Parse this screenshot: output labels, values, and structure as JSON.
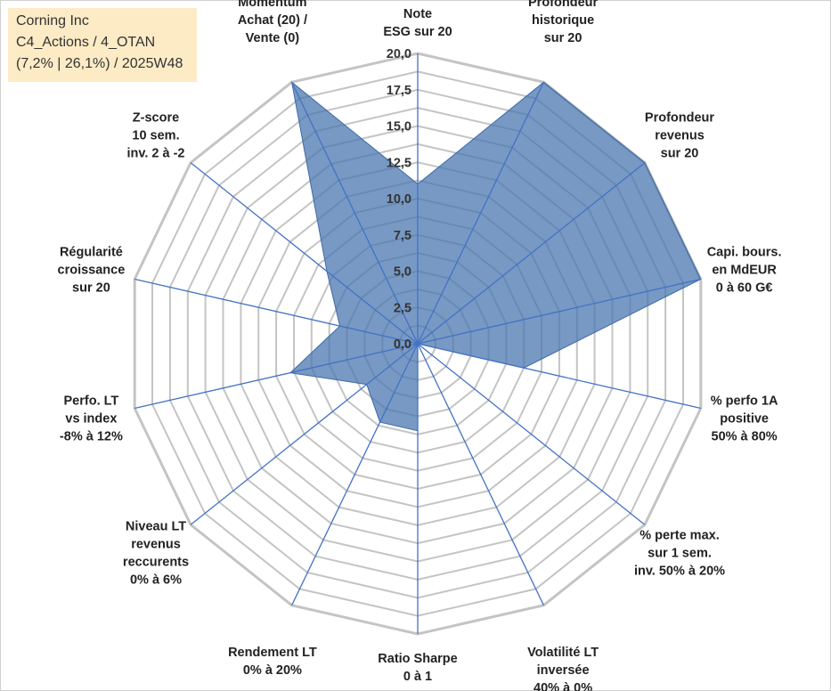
{
  "info": {
    "company": "Corning Inc",
    "category": "C4_Actions / 4_OTAN",
    "stats": "(7,2% | 26,1%) / 2025W48"
  },
  "chart_data": {
    "type": "radar",
    "title": "",
    "r_range": [
      0,
      20
    ],
    "r_ticks": [
      "0,0",
      "2,5",
      "5,0",
      "7,5",
      "10,0",
      "12,5",
      "15,0",
      "17,5",
      "20,0"
    ],
    "axes": [
      {
        "label": [
          "Note",
          "ESG sur 20"
        ]
      },
      {
        "label": [
          "Profondeur",
          "historique",
          "sur 20"
        ]
      },
      {
        "label": [
          "Profondeur",
          "revenus",
          "sur 20"
        ]
      },
      {
        "label": [
          "Capi. bours.",
          "en MdEUR",
          "0 à 60 G€"
        ]
      },
      {
        "label": [
          "% perfo 1A",
          "positive",
          "50% à 80%"
        ]
      },
      {
        "label": [
          "% perte max.",
          "sur 1 sem.",
          "inv. 50% à 20%"
        ]
      },
      {
        "label": [
          "Volatilité LT",
          "inversée",
          "40% à 0%"
        ]
      },
      {
        "label": [
          "Ratio Sharpe",
          "0 à 1"
        ]
      },
      {
        "label": [
          "Rendement LT",
          "0% à 20%"
        ]
      },
      {
        "label": [
          "Niveau LT",
          "revenus",
          "reccurents",
          "0% à 6%"
        ]
      },
      {
        "label": [
          "Perfo. LT",
          "vs index",
          "-8% à 12%"
        ]
      },
      {
        "label": [
          "Régularité",
          "croissance",
          "sur 20"
        ]
      },
      {
        "label": [
          "Z-score",
          "10 sem.",
          "inv. 2 à -2"
        ]
      },
      {
        "label": [
          "Momentum",
          "Achat (20) /",
          "Vente (0)"
        ]
      }
    ],
    "series": [
      {
        "name": "Corning Inc",
        "values": [
          11.0,
          20.0,
          20.0,
          20.0,
          7.5,
          0.0,
          0.0,
          6.0,
          6.0,
          4.5,
          9.0,
          5.5,
          8.0,
          20.0
        ]
      }
    ],
    "colors": {
      "fill": "#4a77b0",
      "spoke": "#4472c4",
      "grid": "#c4c4c4"
    }
  }
}
